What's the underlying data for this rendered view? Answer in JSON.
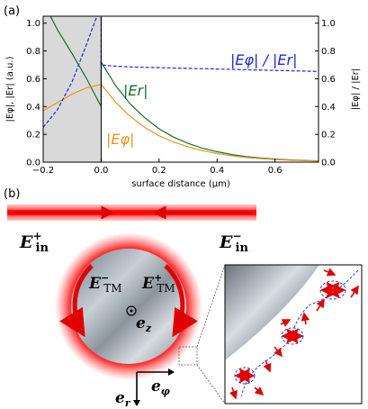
{
  "panel_a": {
    "label": "(a)",
    "chart_data": {
      "type": "line",
      "xlabel": "surface distance (μm)",
      "ylabel_left": "|Eφ|, |Er| (a.u.)",
      "ylabel_right": "|Eφ| / |Er|",
      "xlim": [
        -0.2,
        0.75
      ],
      "ylim_left": [
        0,
        1.05
      ],
      "ylim_right": [
        0,
        1.05
      ],
      "x_ticks": [
        "−0.2",
        "0.0",
        "0.2",
        "0.4",
        "0.6"
      ],
      "x_tick_values": [
        -0.2,
        0.0,
        0.2,
        0.4,
        0.6
      ],
      "y_ticks_left": [
        "0.0",
        "0.2",
        "0.4",
        "0.6",
        "0.8",
        "1.0"
      ],
      "y_ticks_right": [
        "0.0",
        "0.2",
        "0.4",
        "0.6",
        "0.8",
        "1.0"
      ],
      "y_tick_values": [
        0.0,
        0.2,
        0.4,
        0.6,
        0.8,
        1.0
      ],
      "shaded_region": [
        -0.2,
        0.0
      ],
      "series": [
        {
          "label": "|Er|",
          "color": "#1a6e2e",
          "style": "solid",
          "x": [
            -0.2,
            -0.15,
            -0.1,
            -0.05,
            0.0,
            0.0,
            0.05,
            0.1,
            0.15,
            0.2,
            0.25,
            0.3,
            0.35,
            0.4,
            0.45,
            0.5,
            0.55,
            0.6,
            0.65,
            0.7,
            0.75
          ],
          "y": [
            1.15,
            0.95,
            0.78,
            0.6,
            0.4,
            0.72,
            0.55,
            0.42,
            0.32,
            0.24,
            0.18,
            0.135,
            0.1,
            0.075,
            0.055,
            0.04,
            0.03,
            0.022,
            0.016,
            0.012,
            0.009
          ]
        },
        {
          "label": "|Eφ|",
          "color": "#e8951e",
          "style": "solid",
          "x": [
            -0.2,
            -0.15,
            -0.1,
            -0.05,
            0.0,
            0.05,
            0.1,
            0.15,
            0.2,
            0.25,
            0.3,
            0.35,
            0.4,
            0.45,
            0.5,
            0.55,
            0.6,
            0.65,
            0.7,
            0.75
          ],
          "y": [
            0.37,
            0.43,
            0.49,
            0.535,
            0.56,
            0.43,
            0.33,
            0.25,
            0.19,
            0.145,
            0.11,
            0.082,
            0.062,
            0.046,
            0.034,
            0.026,
            0.019,
            0.014,
            0.011,
            0.008
          ]
        },
        {
          "label": "|Eφ| / |Er|",
          "color": "#1f2ad6",
          "style": "dashed",
          "x": [
            -0.2,
            -0.15,
            -0.1,
            -0.05,
            -0.02,
            0.0,
            0.0,
            0.05,
            0.1,
            0.2,
            0.3,
            0.4,
            0.5,
            0.6,
            0.7,
            0.75
          ],
          "y": [
            0.25,
            0.38,
            0.58,
            0.85,
            1.02,
            1.12,
            0.7,
            0.69,
            0.685,
            0.68,
            0.675,
            0.67,
            0.665,
            0.66,
            0.655,
            0.653
          ]
        }
      ],
      "annotations": [
        "|Eφ| / |Er|",
        "|Er|",
        "|Eφ|"
      ]
    }
  },
  "panel_b": {
    "label": "(b)",
    "e_in_plus": "E",
    "e_in_plus_sup": "+",
    "e_in_plus_sub": "in",
    "e_in_minus": "E",
    "e_in_minus_sup": "−",
    "e_in_minus_sub": "in",
    "e_tm_minus": "E",
    "e_tm_minus_sup": "−",
    "e_tm_minus_sub": "TM",
    "e_tm_plus": "E",
    "e_tm_plus_sup": "+",
    "e_tm_plus_sub": "TM",
    "e_z": "e",
    "e_z_sub": "z",
    "e_r": "e",
    "e_r_sub": "r",
    "e_phi": "e",
    "e_phi_sub": "φ"
  }
}
